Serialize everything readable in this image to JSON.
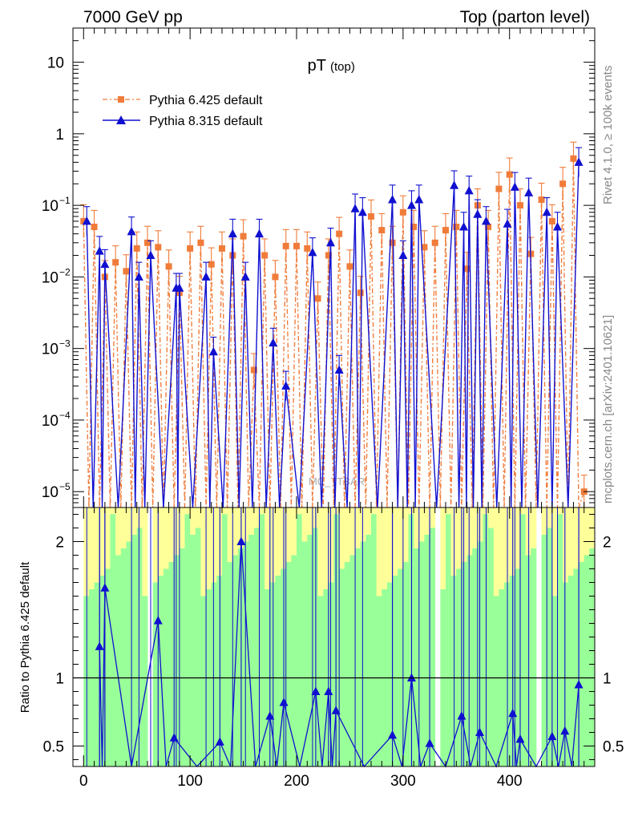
{
  "header": {
    "left": "7000 GeV pp",
    "right": "Top (parton level)"
  },
  "side_labels": {
    "rivet": "Rivet 4.1.0, ≥ 100k events",
    "mcplots": "mcplots.cern.ch [arXiv:2401.10621]"
  },
  "watermark": "MC_TTBAR",
  "chart_data": [
    {
      "type": "line",
      "title": "pT",
      "title_sub": "(top)",
      "yscale": "log",
      "xlim": [
        -10,
        480
      ],
      "ylim": [
        6e-06,
        30
      ],
      "yticks": [
        {
          "v": 10,
          "mant": "10",
          "exp": ""
        },
        {
          "v": 1,
          "mant": "1",
          "exp": ""
        },
        {
          "v": 0.1,
          "mant": "10",
          "exp": "−1"
        },
        {
          "v": 0.01,
          "mant": "10",
          "exp": "−2"
        },
        {
          "v": 0.001,
          "mant": "10",
          "exp": "−3"
        },
        {
          "v": 0.0001,
          "mant": "10",
          "exp": "−4"
        },
        {
          "v": 1e-05,
          "mant": "10",
          "exp": "−5"
        }
      ],
      "legend_position": "top-left",
      "series": [
        {
          "name": "Pythia 6.425 default",
          "color": "#f07c3a",
          "marker": "square",
          "x": [
            0,
            10,
            20,
            30,
            40,
            50,
            60,
            70,
            80,
            90,
            100,
            110,
            120,
            130,
            140,
            150,
            160,
            170,
            180,
            190,
            200,
            210,
            220,
            230,
            240,
            250,
            260,
            270,
            280,
            290,
            300,
            310,
            320,
            330,
            340,
            350,
            360,
            370,
            380,
            390,
            400,
            410,
            420,
            430,
            440,
            450,
            460,
            470
          ],
          "values": [
            0.06,
            0.05,
            0.01,
            0.016,
            0.012,
            0.025,
            0.03,
            0.026,
            0.014,
            0.006,
            0.025,
            0.03,
            0.015,
            0.025,
            0.02,
            0.037,
            0.0005,
            0.02,
            0.01,
            0.027,
            0.027,
            0.025,
            0.005,
            0.02,
            0.04,
            0.014,
            0.006,
            0.07,
            0.045,
            0.03,
            0.08,
            0.05,
            0.026,
            0.03,
            0.045,
            0.05,
            0.013,
            0.1,
            0.05,
            0.17,
            0.27,
            0.1,
            0.021,
            0.12,
            0.06,
            0.2,
            0.45,
            1e-05
          ]
        },
        {
          "name": "Pythia 8.315 default",
          "color": "#1010d0",
          "marker": "triangle",
          "x": [
            3,
            15,
            20,
            45,
            52,
            63,
            87,
            90,
            115,
            122,
            140,
            152,
            165,
            178,
            190,
            215,
            232,
            240,
            255,
            262,
            290,
            300,
            308,
            315,
            348,
            357,
            362,
            370,
            378,
            398,
            405,
            418,
            435,
            445,
            465
          ],
          "values": [
            0.06,
            0.023,
            0.015,
            0.043,
            0.01,
            0.02,
            0.007,
            0.007,
            0.01,
            0.0009,
            0.04,
            0.01,
            0.04,
            0.0012,
            0.0003,
            0.022,
            0.03,
            0.0005,
            0.09,
            0.08,
            0.12,
            0.02,
            0.1,
            0.12,
            0.19,
            0.05,
            0.16,
            0.075,
            0.06,
            0.055,
            0.18,
            0.15,
            0.08,
            0.05,
            0.4
          ]
        }
      ]
    },
    {
      "type": "line",
      "ylabel": "Ratio to Pythia 6.425 default",
      "xlim": [
        -10,
        480
      ],
      "ylim": [
        0.35,
        2.25
      ],
      "yticks": [
        0.5,
        1,
        2
      ],
      "xticks": [
        0,
        100,
        200,
        300,
        400
      ],
      "reference_line": 1,
      "series": [
        {
          "name": "Pythia 8.315 / Pythia 6.425",
          "color": "#1010d0",
          "marker": "triangle",
          "x": [
            15,
            20,
            70,
            85,
            128,
            148,
            175,
            188,
            218,
            230,
            237,
            290,
            308,
            325,
            355,
            372,
            403,
            410,
            440,
            452,
            465
          ],
          "values": [
            1.23,
            1.66,
            1.42,
            0.56,
            0.53,
            2.0,
            0.72,
            0.82,
            0.9,
            0.9,
            0.76,
            0.58,
            1.0,
            0.52,
            0.72,
            0.6,
            0.74,
            0.55,
            0.57,
            0.61,
            0.95
          ]
        }
      ]
    }
  ]
}
